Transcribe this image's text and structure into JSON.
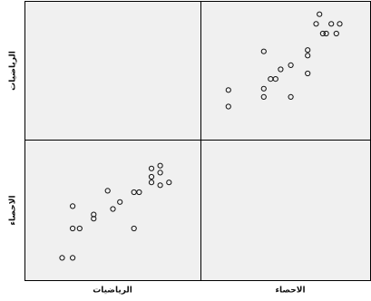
{
  "chart_data": {
    "type": "scatter",
    "layout": "scatterplot-matrix",
    "variables": [
      "الرياضيات",
      "الاحصاء"
    ],
    "row_labels": [
      "الرياضيات",
      "الاحصاء"
    ],
    "col_labels": [
      "الرياضيات",
      "الاحصاء"
    ],
    "grid": false,
    "panels": [
      {
        "row": "الرياضيات",
        "col": "الاحصاء",
        "xlabel": "الاحصاء",
        "ylabel": "الرياضيات",
        "xlim": [
          0,
          100
        ],
        "ylim": [
          0,
          100
        ],
        "points": [
          {
            "x": 16,
            "y": 24
          },
          {
            "x": 16,
            "y": 36
          },
          {
            "x": 37,
            "y": 31
          },
          {
            "x": 37,
            "y": 37
          },
          {
            "x": 37,
            "y": 64
          },
          {
            "x": 41,
            "y": 44
          },
          {
            "x": 44,
            "y": 44
          },
          {
            "x": 47,
            "y": 51
          },
          {
            "x": 53,
            "y": 31
          },
          {
            "x": 53,
            "y": 54
          },
          {
            "x": 63,
            "y": 48
          },
          {
            "x": 63,
            "y": 61
          },
          {
            "x": 63,
            "y": 65
          },
          {
            "x": 68,
            "y": 84
          },
          {
            "x": 70,
            "y": 91
          },
          {
            "x": 72,
            "y": 77
          },
          {
            "x": 74,
            "y": 77
          },
          {
            "x": 77,
            "y": 84
          },
          {
            "x": 80,
            "y": 77
          },
          {
            "x": 82,
            "y": 84
          }
        ]
      },
      {
        "row": "الاحصاء",
        "col": "الرياضيات",
        "xlabel": "الرياضيات",
        "ylabel": "الاحصاء",
        "xlim": [
          0,
          100
        ],
        "ylim": [
          0,
          100
        ],
        "points": [
          {
            "x": 21,
            "y": 16
          },
          {
            "x": 27,
            "y": 16
          },
          {
            "x": 27,
            "y": 37
          },
          {
            "x": 27,
            "y": 53
          },
          {
            "x": 31,
            "y": 37
          },
          {
            "x": 39,
            "y": 44
          },
          {
            "x": 39,
            "y": 47
          },
          {
            "x": 47,
            "y": 64
          },
          {
            "x": 50,
            "y": 51
          },
          {
            "x": 54,
            "y": 56
          },
          {
            "x": 62,
            "y": 37
          },
          {
            "x": 62,
            "y": 63
          },
          {
            "x": 65,
            "y": 63
          },
          {
            "x": 72,
            "y": 70
          },
          {
            "x": 72,
            "y": 74
          },
          {
            "x": 72,
            "y": 80
          },
          {
            "x": 77,
            "y": 68
          },
          {
            "x": 77,
            "y": 77
          },
          {
            "x": 77,
            "y": 82
          },
          {
            "x": 82,
            "y": 70
          }
        ]
      }
    ]
  }
}
